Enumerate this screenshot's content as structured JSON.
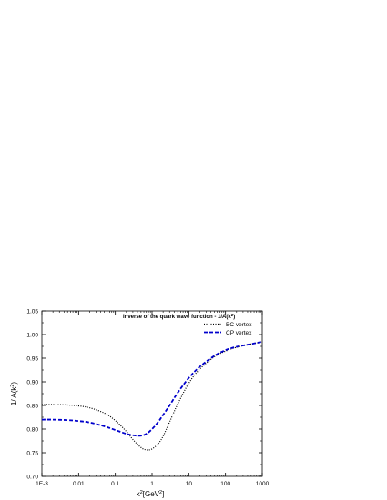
{
  "chart_data": {
    "type": "line",
    "x_scale": "log",
    "xlim": [
      0.001,
      1000
    ],
    "ylim": [
      0.7,
      1.05
    ],
    "x_tick_labels": [
      "1E-3",
      "0.01",
      "0.1",
      "1",
      "10",
      "100",
      "1000"
    ],
    "y_tick_labels": [
      "0.70",
      "0.75",
      "0.80",
      "0.85",
      "0.90",
      "0.95",
      "1.00",
      "1.05"
    ],
    "xlabel": {
      "main": "k",
      "sup": "2",
      "rest": "[GeV",
      "sup2": "2",
      "end": "]"
    },
    "ylabel": {
      "main": "1/ A(k",
      "sup": "2",
      "end": ")"
    },
    "legend_title": {
      "main": "Inverse of the quark wave function - 1/A(k",
      "sup": "2",
      "end": ")"
    },
    "legend_position": "top-right",
    "grid": false,
    "series": [
      {
        "name": "BC vertex",
        "color": "#000000",
        "style": "dotted",
        "x": [
          0.001,
          0.002,
          0.005,
          0.01,
          0.02,
          0.05,
          0.1,
          0.2,
          0.3,
          0.5,
          0.7,
          1,
          1.5,
          2,
          3,
          5,
          10,
          20,
          50,
          100,
          200,
          500,
          1000
        ],
        "y": [
          0.852,
          0.852,
          0.851,
          0.849,
          0.845,
          0.834,
          0.818,
          0.795,
          0.778,
          0.761,
          0.756,
          0.758,
          0.77,
          0.785,
          0.815,
          0.853,
          0.897,
          0.927,
          0.953,
          0.965,
          0.973,
          0.98,
          0.984
        ]
      },
      {
        "name": "CP vertex",
        "color": "#0000cc",
        "style": "dashed",
        "x": [
          0.001,
          0.002,
          0.005,
          0.01,
          0.02,
          0.05,
          0.1,
          0.2,
          0.3,
          0.5,
          0.7,
          1,
          1.5,
          2,
          3,
          5,
          10,
          20,
          50,
          100,
          200,
          500,
          1000
        ],
        "y": [
          0.82,
          0.82,
          0.819,
          0.817,
          0.814,
          0.806,
          0.798,
          0.79,
          0.787,
          0.786,
          0.79,
          0.8,
          0.816,
          0.83,
          0.85,
          0.877,
          0.908,
          0.932,
          0.955,
          0.967,
          0.974,
          0.98,
          0.985
        ]
      }
    ]
  }
}
